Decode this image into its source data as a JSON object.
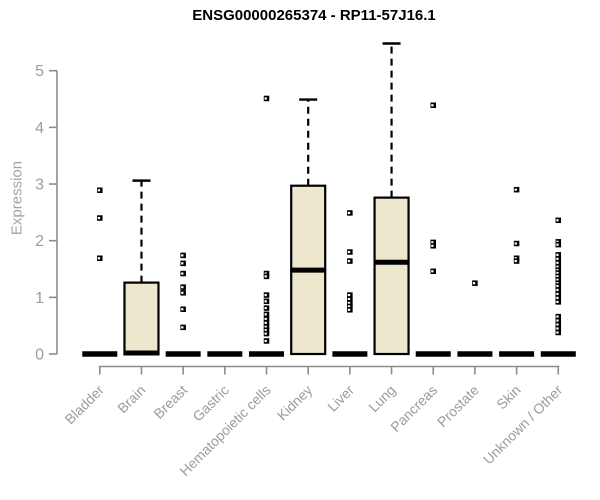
{
  "header": {
    "title": "ENSG00000265374 - RP11-57J16.1"
  },
  "chart_data": {
    "type": "boxplot",
    "title": "ENSG00000265374 - RP11-57J16.1",
    "xlabel": "",
    "ylabel": "Expression",
    "ylim": [
      0,
      5.6
    ],
    "yticks": [
      0,
      1,
      2,
      3,
      4,
      5
    ],
    "grid": false,
    "legend": false,
    "categories": [
      "Bladder",
      "Brain",
      "Breast",
      "Gastric",
      "Hematopoietic cells",
      "Kidney",
      "Liver",
      "Lung",
      "Pancreas",
      "Prostate",
      "Skin",
      "Unknown / Other"
    ],
    "series": [
      {
        "name": "Bladder",
        "whisker_low": 0,
        "q1": 0,
        "median": 0,
        "q3": 0,
        "whisker_high": 0,
        "outliers": [
          2.89,
          2.4,
          1.69
        ]
      },
      {
        "name": "Brain",
        "whisker_low": 0,
        "q1": 0,
        "median": 0,
        "q3": 1.26,
        "whisker_high": 3.06,
        "outliers": []
      },
      {
        "name": "Breast",
        "whisker_low": 0,
        "q1": 0,
        "median": 0,
        "q3": 0,
        "whisker_high": 0,
        "outliers": [
          1.74,
          1.6,
          1.42,
          1.18,
          1.08,
          0.79,
          0.47
        ]
      },
      {
        "name": "Gastric",
        "whisker_low": 0,
        "q1": 0,
        "median": 0,
        "q3": 0,
        "whisker_high": 0,
        "outliers": []
      },
      {
        "name": "Hematopoietic cells",
        "whisker_low": 0,
        "q1": 0,
        "median": 0,
        "q3": 0,
        "whisker_high": 0,
        "outliers": [
          4.51,
          1.42,
          1.37,
          1.04,
          0.93,
          0.81,
          0.7,
          0.62,
          0.55,
          0.48,
          0.42,
          0.36,
          0.23
        ]
      },
      {
        "name": "Kidney",
        "whisker_low": 0,
        "q1": 0,
        "median": 1.48,
        "q3": 2.97,
        "whisker_high": 4.49,
        "outliers": []
      },
      {
        "name": "Liver",
        "whisker_low": 0,
        "q1": 0,
        "median": 0,
        "q3": 0,
        "whisker_high": 0,
        "outliers": [
          2.49,
          1.8,
          1.64,
          1.04,
          0.97,
          0.9,
          0.84,
          0.78
        ]
      },
      {
        "name": "Lung",
        "whisker_low": 0,
        "q1": 0,
        "median": 1.62,
        "q3": 2.76,
        "whisker_high": 5.48,
        "outliers": []
      },
      {
        "name": "Pancreas",
        "whisker_low": 0,
        "q1": 0,
        "median": 0,
        "q3": 0,
        "whisker_high": 0,
        "outliers": [
          4.39,
          1.97,
          1.91,
          1.46
        ]
      },
      {
        "name": "Prostate",
        "whisker_low": 0,
        "q1": 0,
        "median": 0,
        "q3": 0,
        "whisker_high": 0,
        "outliers": [
          1.25
        ]
      },
      {
        "name": "Skin",
        "whisker_low": 0,
        "q1": 0,
        "median": 0,
        "q3": 0,
        "whisker_high": 0,
        "outliers": [
          2.9,
          1.95,
          1.69,
          1.64
        ]
      },
      {
        "name": "Unknown / Other",
        "whisker_low": 0,
        "q1": 0,
        "median": 0,
        "q3": 0,
        "whisker_high": 0,
        "outliers": [
          2.36,
          1.98,
          1.93,
          1.75,
          1.68,
          1.61,
          1.54,
          1.48,
          1.43,
          1.37,
          1.31,
          1.25,
          1.2,
          1.13,
          1.06,
          0.99,
          0.92,
          0.66,
          0.59,
          0.52,
          0.45,
          0.38
        ]
      }
    ],
    "colors": {
      "box_fill": "#EDE7CD",
      "box_border": "#000000",
      "median": "#000000",
      "whisker": "#000000",
      "outlier": "#000000",
      "axis": "#8c8c8c",
      "tick_label": "#9c9c9c",
      "title": "#000000",
      "background": "#ffffff"
    }
  }
}
